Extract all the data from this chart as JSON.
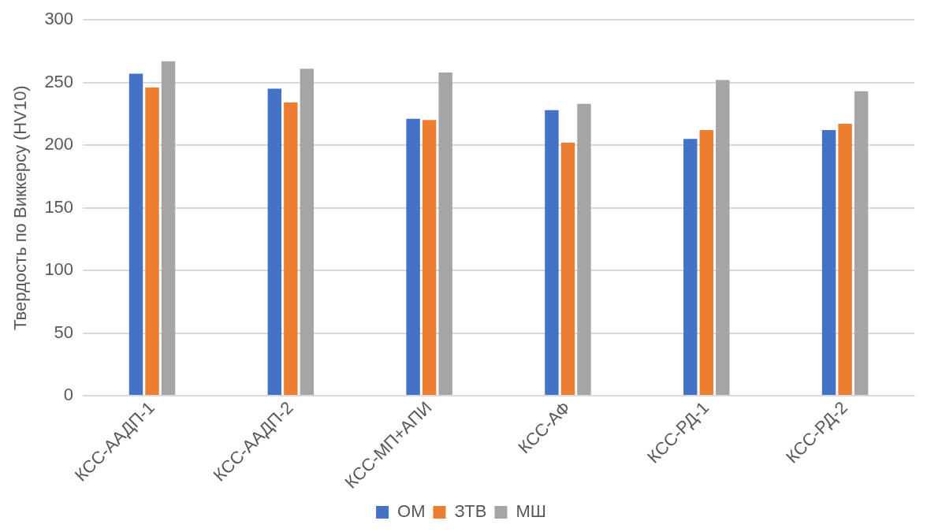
{
  "chart_data": {
    "type": "bar",
    "ylabel": "Твердость по Виккерсу (HV10)",
    "categories": [
      "КСС-ААДП-1",
      "КСС-ААДП-2",
      "КСС-МП+АПИ",
      "КСС-АФ",
      "КСС-РД-1",
      "КСС-РД-2"
    ],
    "series": [
      {
        "name": "ОМ",
        "color": "#4472c4",
        "values": [
          257,
          245,
          221,
          228,
          205,
          212
        ]
      },
      {
        "name": "ЗТВ",
        "color": "#ed7d31",
        "values": [
          246,
          234,
          220,
          202,
          212,
          217
        ]
      },
      {
        "name": "МШ",
        "color": "#a5a5a5",
        "values": [
          267,
          261,
          258,
          233,
          252,
          243
        ]
      }
    ],
    "ylim": [
      0,
      300
    ],
    "yticks": [
      0,
      50,
      100,
      150,
      200,
      250,
      300
    ],
    "grid": "y",
    "legend": "bottom"
  }
}
